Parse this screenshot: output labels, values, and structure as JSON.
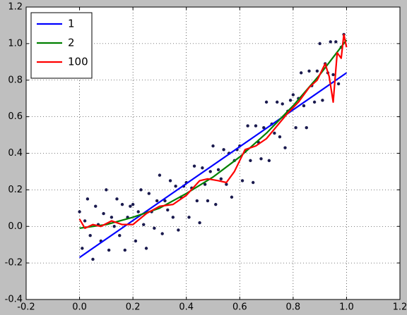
{
  "chart_data": {
    "type": "line",
    "xlim": [
      -0.2,
      1.2
    ],
    "ylim": [
      -0.4,
      1.2
    ],
    "xticks": [
      {
        "value": -0.2,
        "label": "-0.2"
      },
      {
        "value": 0,
        "label": "0.0"
      },
      {
        "value": 0.2,
        "label": "0.2"
      },
      {
        "value": 0.4,
        "label": "0.4"
      },
      {
        "value": 0.6,
        "label": "0.6"
      },
      {
        "value": 0.8,
        "label": "0.8"
      },
      {
        "value": 1,
        "label": "1.0"
      },
      {
        "value": 1.2,
        "label": "1.2"
      }
    ],
    "yticks": [
      {
        "value": -0.4,
        "label": "-0.4"
      },
      {
        "value": -0.2,
        "label": "-0.2"
      },
      {
        "value": 0,
        "label": "0.0"
      },
      {
        "value": 0.2,
        "label": "0.2"
      },
      {
        "value": 0.4,
        "label": "0.4"
      },
      {
        "value": 0.6,
        "label": "0.6"
      },
      {
        "value": 0.8,
        "label": "0.8"
      },
      {
        "value": 1,
        "label": "1.0"
      },
      {
        "value": 1.2,
        "label": "1.2"
      }
    ],
    "grid": true,
    "legend": "upper left",
    "series": [
      {
        "type": "scatter",
        "color": "#1a1a4e",
        "x": [
          0,
          0.01,
          0.02,
          0.03,
          0.04,
          0.05,
          0.06,
          0.07,
          0.08,
          0.09,
          0.1,
          0.11,
          0.12,
          0.13,
          0.14,
          0.15,
          0.16,
          0.17,
          0.18,
          0.19,
          0.2,
          0.21,
          0.22,
          0.23,
          0.24,
          0.25,
          0.26,
          0.27,
          0.28,
          0.29,
          0.3,
          0.31,
          0.32,
          0.33,
          0.34,
          0.35,
          0.36,
          0.37,
          0.38,
          0.39,
          0.4,
          0.41,
          0.42,
          0.43,
          0.44,
          0.45,
          0.46,
          0.47,
          0.48,
          0.49,
          0.5,
          0.51,
          0.52,
          0.53,
          0.54,
          0.55,
          0.56,
          0.57,
          0.58,
          0.59,
          0.6,
          0.61,
          0.62,
          0.63,
          0.64,
          0.65,
          0.66,
          0.67,
          0.68,
          0.69,
          0.7,
          0.71,
          0.72,
          0.73,
          0.74,
          0.75,
          0.76,
          0.77,
          0.78,
          0.79,
          0.8,
          0.81,
          0.82,
          0.83,
          0.84,
          0.85,
          0.86,
          0.87,
          0.88,
          0.89,
          0.9,
          0.91,
          0.92,
          0.93,
          0.94,
          0.95,
          0.96,
          0.97,
          0.98,
          0.99
        ],
        "values": [
          0.08,
          -0.12,
          0.03,
          0.15,
          -0.05,
          -0.18,
          0.11,
          0.01,
          -0.08,
          0.07,
          0.2,
          -0.13,
          0.05,
          0,
          0.15,
          -0.05,
          0.12,
          -0.13,
          0.05,
          0.11,
          0.12,
          -0.08,
          0.08,
          0.2,
          0.01,
          -0.12,
          0.18,
          0.08,
          -0.01,
          0.14,
          0.28,
          -0.04,
          0.14,
          0.09,
          0.25,
          0.05,
          0.22,
          -0.02,
          0.16,
          0.22,
          0.24,
          0.05,
          0.21,
          0.33,
          0.14,
          0.02,
          0.32,
          0.23,
          0.14,
          0.3,
          0.44,
          0.12,
          0.31,
          0.26,
          0.42,
          0.23,
          0.4,
          0.16,
          0.36,
          0.42,
          0.44,
          0.25,
          0.41,
          0.55,
          0.36,
          0.24,
          0.55,
          0.46,
          0.37,
          0.54,
          0.68,
          0.36,
          0.56,
          0.51,
          0.68,
          0.49,
          0.67,
          0.43,
          0.63,
          0.69,
          0.72,
          0.54,
          0.7,
          0.84,
          0.66,
          0.54,
          0.85,
          0.77,
          0.68,
          0.85,
          1,
          0.69,
          0.89,
          0.84,
          1.01,
          0.83,
          1.01,
          0.78,
          0.98,
          1.05
        ]
      },
      {
        "type": "line",
        "name": "1",
        "color": "#0000ff",
        "x": [
          0,
          1
        ],
        "values": [
          -0.17,
          0.84
        ]
      },
      {
        "type": "line",
        "name": "2",
        "color": "#008000",
        "x": [
          0,
          0.1,
          0.2,
          0.3,
          0.4,
          0.5,
          0.6,
          0.7,
          0.8,
          0.9,
          1
        ],
        "values": [
          -0.01,
          0.01,
          0.05,
          0.1,
          0.18,
          0.27,
          0.38,
          0.51,
          0.66,
          0.83,
          1.02
        ]
      },
      {
        "type": "line",
        "name": "100",
        "color": "#ff0000",
        "x": [
          0,
          0.02,
          0.05,
          0.08,
          0.12,
          0.16,
          0.2,
          0.25,
          0.3,
          0.35,
          0.4,
          0.45,
          0.48,
          0.52,
          0.55,
          0.58,
          0.62,
          0.66,
          0.7,
          0.74,
          0.78,
          0.82,
          0.86,
          0.89,
          0.92,
          0.935,
          0.95,
          0.965,
          0.98,
          0.99,
          1
        ],
        "values": [
          0.04,
          -0.01,
          0.01,
          0,
          0.03,
          0.01,
          0.01,
          0.07,
          0.11,
          0.12,
          0.17,
          0.25,
          0.26,
          0.25,
          0.24,
          0.3,
          0.42,
          0.44,
          0.48,
          0.55,
          0.62,
          0.68,
          0.76,
          0.8,
          0.89,
          0.82,
          0.68,
          0.95,
          0.92,
          1.05,
          0.98
        ]
      }
    ]
  }
}
